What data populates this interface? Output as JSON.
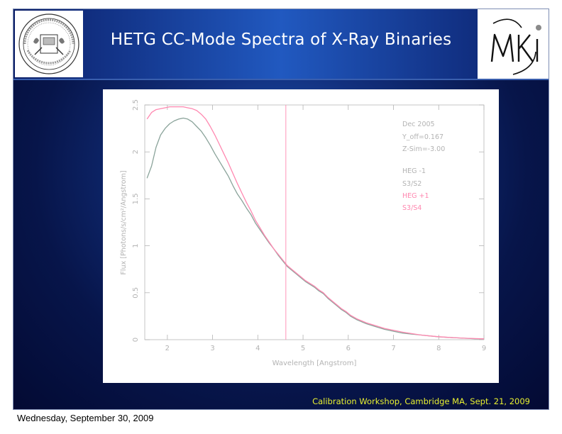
{
  "slide": {
    "title": "HETG CC-Mode Spectra of X-Ray Binaries",
    "footer": "Calibration Workshop, Cambridge MA, Sept. 21, 2009"
  },
  "page": {
    "date": "Wednesday, September 30, 2009"
  },
  "logos": {
    "left": "mit-seal",
    "right": "mki-logo"
  },
  "colors": {
    "accent_text": "#e8f030",
    "series_heg_minus": "#8aa39a",
    "series_heg_plus": "#ff88b0"
  },
  "chart_data": {
    "type": "line",
    "xlabel": "Wavelength [Angstrom]",
    "ylabel": "Flux [Photons/s/cm²/Angstrom]",
    "xlim": [
      1.5,
      9
    ],
    "ylim": [
      0,
      2.5
    ],
    "xticks": [
      2,
      3,
      4,
      5,
      6,
      7,
      8,
      9
    ],
    "yticks": [
      0,
      0.5,
      1,
      1.5,
      2,
      2.5
    ],
    "vline_x": 4.62,
    "annotations": [
      "Dec 2005",
      "Y_off=0.167",
      "Z-Sim=-3.00"
    ],
    "series": [
      {
        "name": "HEG -1 S3/S2",
        "color": "#8aa39a",
        "legend_lines": [
          "HEG -1",
          "S3/S2"
        ],
        "x": [
          1.55,
          1.65,
          1.75,
          1.85,
          1.95,
          2.05,
          2.15,
          2.25,
          2.35,
          2.45,
          2.55,
          2.65,
          2.75,
          2.85,
          2.95,
          3.05,
          3.15,
          3.25,
          3.35,
          3.45,
          3.55,
          3.65,
          3.75,
          3.85,
          3.95,
          4.05,
          4.15,
          4.25,
          4.35,
          4.45,
          4.55,
          4.65,
          4.75,
          4.85,
          4.95,
          5.05,
          5.15,
          5.25,
          5.35,
          5.45,
          5.55,
          5.65,
          5.75,
          5.85,
          5.95,
          6.05,
          6.2,
          6.4,
          6.6,
          6.8,
          7.0,
          7.2,
          7.4,
          7.6,
          7.8,
          8.0,
          8.2,
          8.4,
          8.6,
          8.8,
          9.0
        ],
        "y": [
          1.72,
          1.85,
          2.05,
          2.18,
          2.25,
          2.3,
          2.33,
          2.35,
          2.36,
          2.35,
          2.32,
          2.27,
          2.22,
          2.15,
          2.07,
          1.98,
          1.9,
          1.82,
          1.74,
          1.64,
          1.55,
          1.48,
          1.4,
          1.33,
          1.24,
          1.17,
          1.1,
          1.03,
          0.97,
          0.9,
          0.84,
          0.78,
          0.74,
          0.7,
          0.66,
          0.62,
          0.59,
          0.56,
          0.52,
          0.49,
          0.44,
          0.4,
          0.36,
          0.32,
          0.29,
          0.25,
          0.21,
          0.17,
          0.14,
          0.11,
          0.09,
          0.07,
          0.06,
          0.05,
          0.04,
          0.03,
          0.025,
          0.02,
          0.015,
          0.01,
          0.008
        ]
      },
      {
        "name": "HEG +1 S3/S4",
        "color": "#ff88b0",
        "legend_lines": [
          "HEG +1",
          "S3/S4"
        ],
        "x": [
          1.55,
          1.65,
          1.75,
          1.85,
          1.95,
          2.05,
          2.15,
          2.25,
          2.35,
          2.45,
          2.55,
          2.65,
          2.75,
          2.85,
          2.95,
          3.05,
          3.15,
          3.25,
          3.35,
          3.45,
          3.55,
          3.65,
          3.75,
          3.85,
          3.95,
          4.05,
          4.15,
          4.25,
          4.35,
          4.45,
          4.55,
          4.65,
          4.75,
          4.85,
          4.95,
          5.05,
          5.15,
          5.25,
          5.35,
          5.45,
          5.55,
          5.65,
          5.75,
          5.85,
          5.95,
          6.05,
          6.2,
          6.4,
          6.6,
          6.8,
          7.0,
          7.2,
          7.4,
          7.6,
          7.8,
          8.0,
          8.2,
          8.4,
          8.6,
          8.8,
          9.0
        ],
        "y": [
          2.35,
          2.42,
          2.45,
          2.46,
          2.47,
          2.48,
          2.48,
          2.48,
          2.48,
          2.47,
          2.46,
          2.44,
          2.4,
          2.35,
          2.27,
          2.18,
          2.08,
          1.98,
          1.88,
          1.77,
          1.66,
          1.56,
          1.46,
          1.37,
          1.27,
          1.19,
          1.11,
          1.04,
          0.97,
          0.91,
          0.85,
          0.79,
          0.75,
          0.71,
          0.67,
          0.63,
          0.6,
          0.57,
          0.53,
          0.5,
          0.45,
          0.41,
          0.37,
          0.33,
          0.3,
          0.26,
          0.22,
          0.18,
          0.15,
          0.12,
          0.1,
          0.08,
          0.065,
          0.05,
          0.04,
          0.032,
          0.025,
          0.02,
          0.015,
          0.012,
          0.009
        ]
      }
    ]
  }
}
